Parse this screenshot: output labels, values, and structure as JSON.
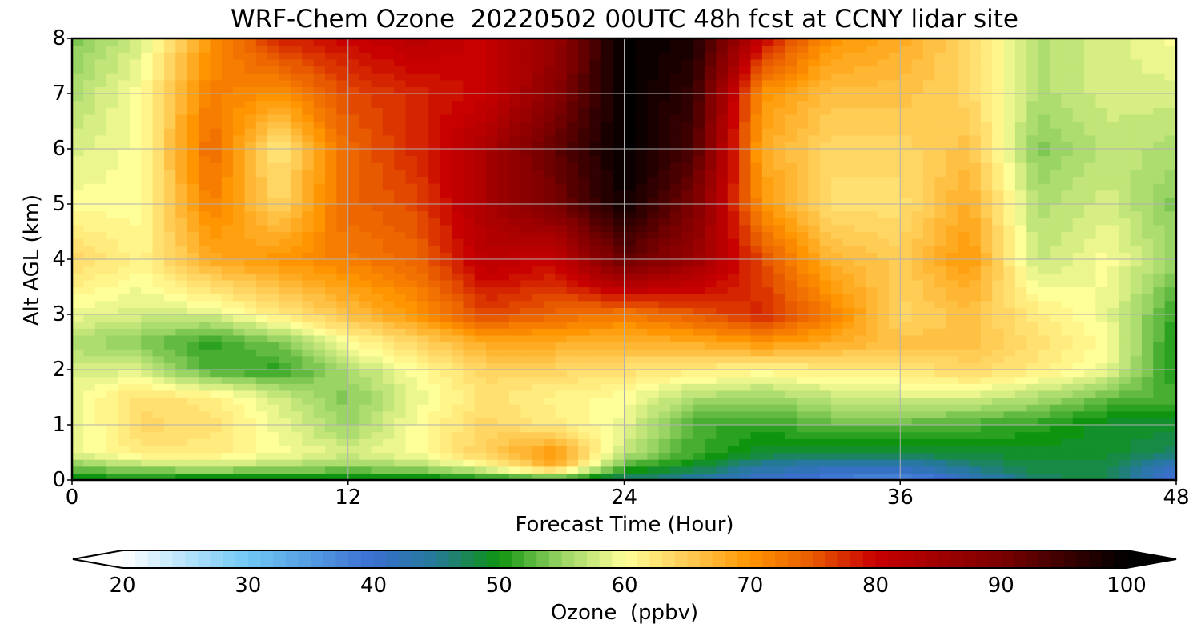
{
  "chart_data": {
    "type": "heatmap",
    "title": "WRF-Chem Ozone  20220502 00UTC 48h fcst at CCNY lidar site",
    "xlabel": "Forecast Time (Hour)",
    "ylabel": "Alt AGL (km)",
    "xlim": [
      0,
      48
    ],
    "ylim": [
      0,
      8
    ],
    "xticks": [
      0,
      12,
      24,
      36,
      48
    ],
    "yticks": [
      0,
      1,
      2,
      3,
      4,
      5,
      6,
      7,
      8
    ],
    "grid": true,
    "x": [
      0,
      3,
      6,
      9,
      12,
      15,
      18,
      21,
      24,
      27,
      30,
      33,
      36,
      39,
      42,
      45,
      48
    ],
    "y": [
      0,
      0.25,
      0.5,
      1,
      1.5,
      2,
      2.5,
      3,
      4,
      5,
      6,
      7,
      8
    ],
    "z": [
      [
        49,
        49,
        48,
        48,
        48,
        48,
        49,
        50,
        46,
        44,
        40,
        38,
        36,
        41,
        47,
        48,
        38
      ],
      [
        54,
        56,
        57,
        56,
        55,
        56,
        60,
        68,
        52,
        49,
        44,
        42,
        42,
        46,
        48,
        48,
        41
      ],
      [
        59,
        62,
        62,
        60,
        58,
        60,
        65,
        70,
        57,
        52,
        49,
        48,
        48,
        49,
        49,
        49,
        47
      ],
      [
        58,
        64,
        63,
        59,
        55,
        60,
        64,
        62,
        59,
        52,
        51,
        53,
        53,
        52,
        51,
        49,
        49
      ],
      [
        59,
        63,
        62,
        58,
        54,
        59,
        63,
        61,
        60,
        56,
        55,
        57,
        58,
        58,
        56,
        53,
        52
      ],
      [
        58,
        58,
        52,
        51,
        56,
        60,
        64,
        64,
        63,
        62,
        61,
        62,
        62,
        64,
        62,
        59,
        50
      ],
      [
        56,
        54,
        51,
        54,
        60,
        64,
        68,
        68,
        67,
        68,
        70,
        68,
        66,
        66,
        63,
        60,
        50
      ],
      [
        59,
        58,
        58,
        62,
        66,
        70,
        76,
        74,
        72,
        75,
        78,
        72,
        64,
        66,
        62,
        59,
        51
      ],
      [
        64,
        61,
        68,
        70,
        72,
        74,
        82,
        80,
        92,
        86,
        76,
        67,
        65,
        70,
        57,
        60,
        55
      ],
      [
        60,
        60,
        72,
        64,
        74,
        76,
        84,
        90,
        99,
        90,
        70,
        63,
        63,
        68,
        56,
        58,
        54
      ],
      [
        58,
        60,
        74,
        62,
        74,
        78,
        84,
        92,
        100,
        94,
        68,
        64,
        64,
        66,
        54,
        57,
        56
      ],
      [
        56,
        60,
        72,
        70,
        76,
        78,
        80,
        88,
        100,
        96,
        70,
        66,
        66,
        64,
        56,
        58,
        58
      ],
      [
        54,
        58,
        70,
        78,
        80,
        82,
        80,
        86,
        100,
        98,
        80,
        70,
        68,
        64,
        56,
        58,
        60
      ]
    ],
    "colorbar": {
      "label": "Ozone  (ppbv)",
      "ticks": [
        20,
        30,
        40,
        50,
        60,
        70,
        80,
        90,
        100
      ],
      "vmin": 20,
      "vmax": 100,
      "extend": "both",
      "colors": [
        {
          "v": 20,
          "c": "#ffffff"
        },
        {
          "v": 30,
          "c": "#70c8f5"
        },
        {
          "v": 40,
          "c": "#3a6fd0"
        },
        {
          "v": 45,
          "c": "#247a96"
        },
        {
          "v": 50,
          "c": "#0f9410"
        },
        {
          "v": 55,
          "c": "#9ad464"
        },
        {
          "v": 60,
          "c": "#ffff99"
        },
        {
          "v": 65,
          "c": "#ffcc55"
        },
        {
          "v": 70,
          "c": "#ff9500"
        },
        {
          "v": 75,
          "c": "#e85a00"
        },
        {
          "v": 80,
          "c": "#c80000"
        },
        {
          "v": 90,
          "c": "#7a0000"
        },
        {
          "v": 100,
          "c": "#000000"
        }
      ]
    }
  }
}
